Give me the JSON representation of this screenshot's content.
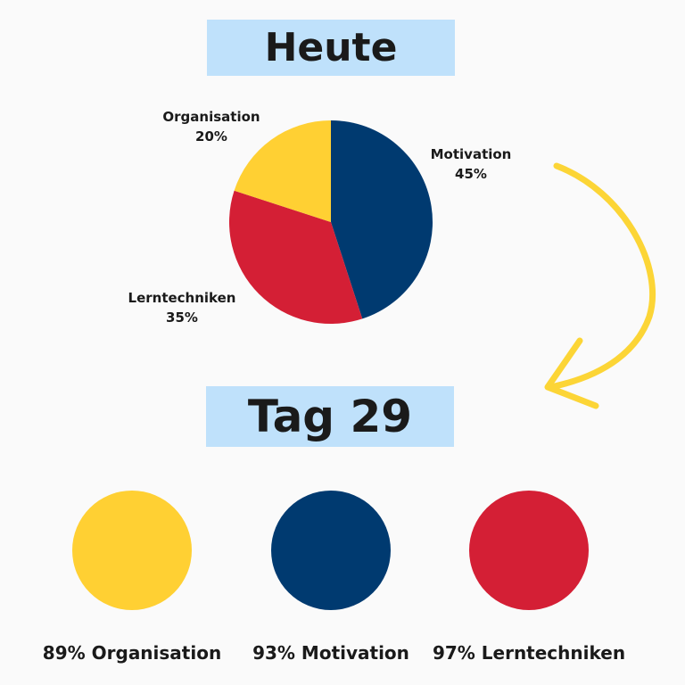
{
  "header": {
    "title": "Heute"
  },
  "section2": {
    "title": "Tag 29"
  },
  "chart_data": {
    "type": "pie",
    "slices": [
      {
        "label": "Motivation",
        "value": 45,
        "display": "45%",
        "color": "#003a70"
      },
      {
        "label": "Lerntechniken",
        "value": 35,
        "display": "35%",
        "color": "#d41f35"
      },
      {
        "label": "Organisation",
        "value": 20,
        "display": "20%",
        "color": "#ffd033"
      }
    ]
  },
  "results": [
    {
      "label": "89% Organisation",
      "color": "#ffd033"
    },
    {
      "label": "93% Motivation",
      "color": "#003a70"
    },
    {
      "label": "97% Lerntechniken",
      "color": "#d41f35"
    }
  ],
  "arrow": {
    "color": "#fcd536"
  }
}
